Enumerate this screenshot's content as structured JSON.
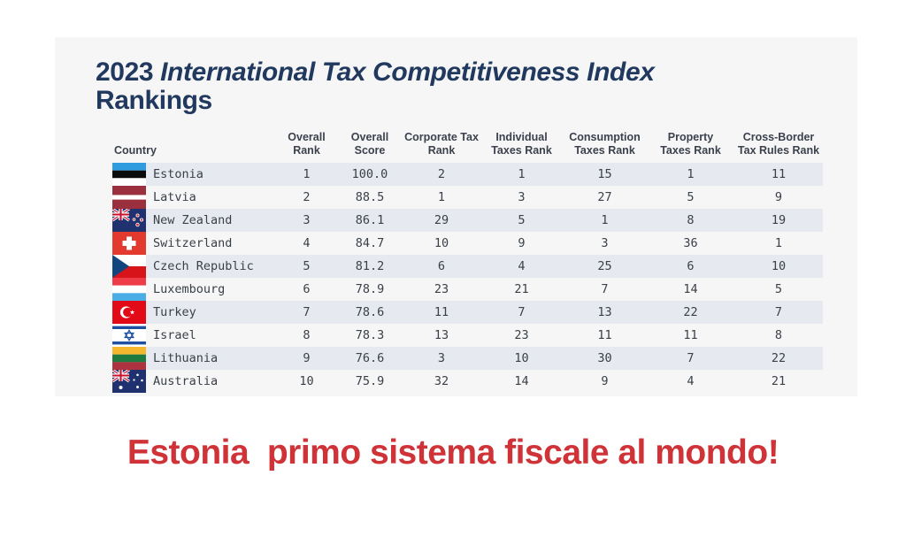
{
  "title": {
    "year": "2023",
    "main": "International Tax Competitiveness Index",
    "line2": "Rankings"
  },
  "caption": {
    "text": "Estonia  primo sistema fiscale al mondo!"
  },
  "colors": {
    "page_bg": "#ffffff",
    "panel_bg": "#f6f6f7",
    "title": "#21395e",
    "caption_red": "#cf3338",
    "stripe": "#e7e9f1",
    "header_text": "#3b414d",
    "cell_text": "#3a4048"
  },
  "table": {
    "columns": [
      {
        "key": "country",
        "label": "Country"
      },
      {
        "key": "overall-rank",
        "label": "Overall\nRank"
      },
      {
        "key": "overall-score",
        "label": "Overall\nScore"
      },
      {
        "key": "corporate-tax-rank",
        "label": "Corporate Tax\nRank"
      },
      {
        "key": "individual-taxes-rank",
        "label": "Individual\nTaxes Rank"
      },
      {
        "key": "consumption-taxes-rank",
        "label": "Consumption\nTaxes Rank"
      },
      {
        "key": "property-taxes-rank",
        "label": "Property\nTaxes Rank"
      },
      {
        "key": "cross-border-tax-rules-rank",
        "label": "Cross-Border\nTax Rules Rank"
      }
    ],
    "rows": [
      {
        "country": "Estonia",
        "flag": "estonia",
        "values": [
          "1",
          "100.0",
          "2",
          "1",
          "15",
          "1",
          "11"
        ]
      },
      {
        "country": "Latvia",
        "flag": "latvia",
        "values": [
          "2",
          "88.5",
          "1",
          "3",
          "27",
          "5",
          "9"
        ]
      },
      {
        "country": "New Zealand",
        "flag": "new-zealand",
        "values": [
          "3",
          "86.1",
          "29",
          "5",
          "1",
          "8",
          "19"
        ]
      },
      {
        "country": "Switzerland",
        "flag": "switzerland",
        "values": [
          "4",
          "84.7",
          "10",
          "9",
          "3",
          "36",
          "1"
        ]
      },
      {
        "country": "Czech Republic",
        "flag": "czech-republic",
        "values": [
          "5",
          "81.2",
          "6",
          "4",
          "25",
          "6",
          "10"
        ]
      },
      {
        "country": "Luxembourg",
        "flag": "luxembourg",
        "values": [
          "6",
          "78.9",
          "23",
          "21",
          "7",
          "14",
          "5"
        ]
      },
      {
        "country": "Turkey",
        "flag": "turkey",
        "values": [
          "7",
          "78.6",
          "11",
          "7",
          "13",
          "22",
          "7"
        ]
      },
      {
        "country": "Israel",
        "flag": "israel",
        "values": [
          "8",
          "78.3",
          "13",
          "23",
          "11",
          "11",
          "8"
        ]
      },
      {
        "country": "Lithuania",
        "flag": "lithuania",
        "values": [
          "9",
          "76.6",
          "3",
          "10",
          "30",
          "7",
          "22"
        ]
      },
      {
        "country": "Australia",
        "flag": "australia",
        "values": [
          "10",
          "75.9",
          "32",
          "14",
          "9",
          "4",
          "21"
        ]
      }
    ]
  },
  "chart_data": {
    "type": "table",
    "title": "2023 International Tax Competitiveness Index Rankings",
    "columns": [
      "Country",
      "Overall Rank",
      "Overall Score",
      "Corporate Tax Rank",
      "Individual Taxes Rank",
      "Consumption Taxes Rank",
      "Property Taxes Rank",
      "Cross-Border Tax Rules Rank"
    ],
    "rows": [
      [
        "Estonia",
        1,
        100.0,
        2,
        1,
        15,
        1,
        11
      ],
      [
        "Latvia",
        2,
        88.5,
        1,
        3,
        27,
        5,
        9
      ],
      [
        "New Zealand",
        3,
        86.1,
        29,
        5,
        1,
        8,
        19
      ],
      [
        "Switzerland",
        4,
        84.7,
        10,
        9,
        3,
        36,
        1
      ],
      [
        "Czech Republic",
        5,
        81.2,
        6,
        4,
        25,
        6,
        10
      ],
      [
        "Luxembourg",
        6,
        78.9,
        23,
        21,
        7,
        14,
        5
      ],
      [
        "Turkey",
        7,
        78.6,
        11,
        7,
        13,
        22,
        7
      ],
      [
        "Israel",
        8,
        78.3,
        13,
        23,
        11,
        11,
        8
      ],
      [
        "Lithuania",
        9,
        76.6,
        3,
        10,
        30,
        7,
        22
      ],
      [
        "Australia",
        10,
        75.9,
        32,
        14,
        9,
        4,
        21
      ]
    ],
    "annotation": "Estonia  primo sistema fiscale al mondo!"
  }
}
